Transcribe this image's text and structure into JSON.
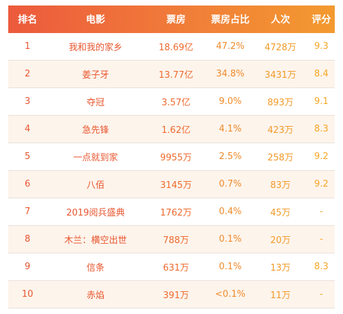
{
  "header": {
    "rank": "排名",
    "movie": "电影",
    "box_office": "票房",
    "share": "票房占比",
    "attendance": "人次",
    "score": "评分"
  },
  "rows": [
    {
      "rank": "1",
      "movie": "我和我的家乡",
      "box_office": "18.69亿",
      "share": "47.2%",
      "attendance": "4728万",
      "score": "9.3"
    },
    {
      "rank": "2",
      "movie": "姜子牙",
      "box_office": "13.77亿",
      "share": "34.8%",
      "attendance": "3431万",
      "score": "8.4"
    },
    {
      "rank": "3",
      "movie": "夺冠",
      "box_office": "3.57亿",
      "share": "9.0%",
      "attendance": "893万",
      "score": "9.1"
    },
    {
      "rank": "4",
      "movie": "急先锋",
      "box_office": "1.62亿",
      "share": "4.1%",
      "attendance": "423万",
      "score": "8.3"
    },
    {
      "rank": "5",
      "movie": "一点就到家",
      "box_office": "9955万",
      "share": "2.5%",
      "attendance": "258万",
      "score": "9.2"
    },
    {
      "rank": "6",
      "movie": "八佰",
      "box_office": "3145万",
      "share": "0.7%",
      "attendance": "83万",
      "score": "9.2"
    },
    {
      "rank": "7",
      "movie": "2019阅兵盛典",
      "box_office": "1762万",
      "share": "0.4%",
      "attendance": "45万",
      "score": "-"
    },
    {
      "rank": "8",
      "movie": "木兰：横空出世",
      "box_office": "788万",
      "share": "0.1%",
      "attendance": "20万",
      "score": "-"
    },
    {
      "rank": "9",
      "movie": "信条",
      "box_office": "631万",
      "share": "0.1%",
      "attendance": "13万",
      "score": "8.3"
    },
    {
      "rank": "10",
      "movie": "赤焰",
      "box_office": "391万",
      "share": "<0.1%",
      "attendance": "11万",
      "score": "-"
    }
  ],
  "colors": {
    "header_gradient_start": "#ec5a3c",
    "header_gradient_end": "#f39a30",
    "alt_row_background": "#fdf4ec",
    "text_primary": "#e8562f"
  }
}
